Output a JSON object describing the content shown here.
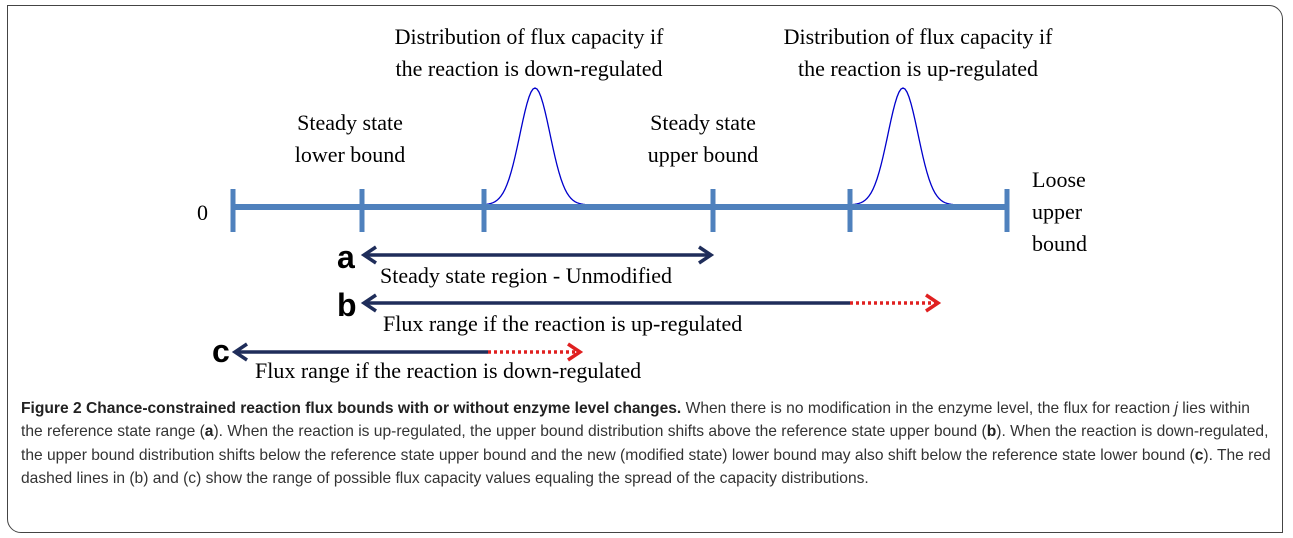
{
  "figure": {
    "zero_label": "0",
    "labels": {
      "lower_bound": [
        "Steady state",
        "lower bound"
      ],
      "down_distribution": [
        "Distribution of flux capacity if",
        "the reaction is down-regulated"
      ],
      "upper_bound": [
        "Steady state",
        "upper bound"
      ],
      "up_distribution": [
        "Distribution of flux capacity if",
        "the reaction is up-regulated"
      ],
      "loose_bound": [
        "Loose",
        "upper",
        "bound"
      ]
    },
    "ranges": [
      {
        "letter": "a",
        "text": "Steady state region - Unmodified"
      },
      {
        "letter": "b",
        "text": "Flux range if the reaction is up-regulated"
      },
      {
        "letter": "c",
        "text": "Flux range if the reaction is down-regulated"
      }
    ]
  },
  "caption": {
    "title": "Figure 2 Chance-constrained reaction flux bounds with or without enzyme level changes.",
    "t0": "When there is no modification in the enzyme level, the flux for reaction",
    "j": "j",
    "t1": "lies within the reference state range (",
    "a": "a",
    "t2": "). When the reaction is up-regulated, the upper bound distribution shifts above the reference state upper bound (",
    "b": "b",
    "t3": "). When the reaction is down-regulated, the upper bound distribution shifts below the reference state upper bound and the new (modified state) lower bound may also shift below the reference state lower bound (",
    "c": "c",
    "t4": "). The red dashed lines in (b) and (c) show the range of possible flux capacity values equaling the spread of the capacity distributions."
  }
}
